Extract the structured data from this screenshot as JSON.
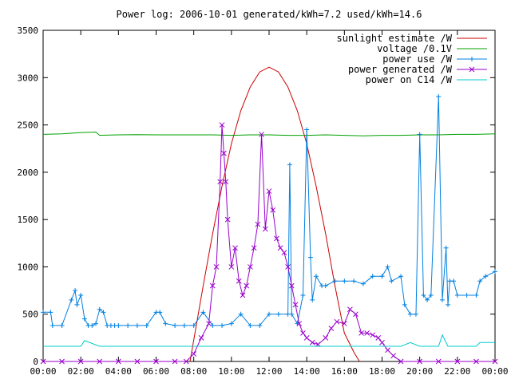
{
  "chart_data": {
    "type": "line",
    "title": "Power log: 2006-10-01 generated/kWh=7.2 used/kWh=14.6",
    "xlabel": "",
    "ylabel": "",
    "xlim": [
      0,
      24
    ],
    "ylim": [
      0,
      3500
    ],
    "x_ticks": [
      "00:00",
      "02:00",
      "04:00",
      "06:00",
      "08:00",
      "10:00",
      "12:00",
      "14:00",
      "16:00",
      "18:00",
      "20:00",
      "22:00",
      "00:00"
    ],
    "y_ticks": [
      "0",
      "500",
      "1000",
      "1500",
      "2000",
      "2500",
      "3000",
      "3500"
    ],
    "grid": false,
    "legend_position": "top-right",
    "series": [
      {
        "name": "sunlight estimate /W",
        "color": "#cc0000",
        "marker": "none",
        "x": [
          7.8,
          8.5,
          9.0,
          9.5,
          10.0,
          10.5,
          11.0,
          11.5,
          12.0,
          12.5,
          13.0,
          13.5,
          14.0,
          14.5,
          15.0,
          15.5,
          16.0,
          16.5,
          16.8
        ],
        "y": [
          0,
          800,
          1350,
          1850,
          2300,
          2650,
          2900,
          3060,
          3110,
          3060,
          2900,
          2650,
          2300,
          1850,
          1350,
          800,
          300,
          100,
          0
        ]
      },
      {
        "name": "voltage /0.1V",
        "color": "#00a000",
        "marker": "none",
        "x": [
          0,
          1,
          2,
          2.8,
          3,
          4,
          5,
          6,
          7,
          8,
          9,
          10,
          11,
          12,
          13,
          14,
          15,
          16,
          17,
          18,
          19,
          20,
          21,
          22,
          23,
          24
        ],
        "y": [
          2400,
          2405,
          2420,
          2425,
          2390,
          2395,
          2398,
          2395,
          2395,
          2395,
          2395,
          2390,
          2395,
          2395,
          2390,
          2390,
          2395,
          2390,
          2385,
          2390,
          2390,
          2395,
          2395,
          2400,
          2400,
          2405
        ]
      },
      {
        "name": "power use /W",
        "color": "#0080e0",
        "marker": "plus",
        "x": [
          0,
          0.4,
          0.5,
          1.0,
          1.5,
          1.7,
          1.8,
          2.0,
          2.2,
          2.4,
          2.6,
          2.8,
          3.0,
          3.2,
          3.4,
          3.6,
          3.8,
          4.0,
          4.5,
          5.0,
          5.5,
          6.0,
          6.2,
          6.5,
          7.0,
          7.5,
          8.0,
          8.5,
          9.0,
          9.5,
          10.0,
          10.5,
          11.0,
          11.5,
          12.0,
          12.5,
          13.0,
          13.1,
          13.2,
          13.5,
          13.8,
          14.0,
          14.2,
          14.3,
          14.5,
          14.8,
          15.0,
          15.5,
          16.0,
          16.5,
          17.0,
          17.5,
          18.0,
          18.3,
          18.5,
          19.0,
          19.2,
          19.5,
          19.8,
          20.0,
          20.2,
          20.4,
          20.6,
          21.0,
          21.2,
          21.4,
          21.5,
          21.6,
          21.8,
          22.0,
          22.5,
          23.0,
          23.2,
          23.5,
          24.0
        ],
        "y": [
          520,
          520,
          380,
          380,
          650,
          750,
          600,
          700,
          450,
          380,
          380,
          400,
          550,
          520,
          380,
          380,
          380,
          380,
          380,
          380,
          380,
          520,
          520,
          400,
          380,
          380,
          380,
          520,
          380,
          380,
          400,
          500,
          380,
          380,
          500,
          500,
          500,
          2080,
          500,
          400,
          700,
          2450,
          1100,
          650,
          900,
          800,
          800,
          850,
          850,
          850,
          820,
          900,
          900,
          1000,
          850,
          900,
          600,
          500,
          500,
          2400,
          700,
          650,
          700,
          2800,
          650,
          1200,
          600,
          850,
          850,
          700,
          700,
          700,
          850,
          900,
          950
        ]
      },
      {
        "name": "power generated /W",
        "color": "#9900cc",
        "marker": "x",
        "x": [
          0,
          1,
          2,
          3,
          4,
          5,
          6,
          7,
          7.6,
          8.0,
          8.4,
          8.8,
          9.0,
          9.2,
          9.4,
          9.5,
          9.6,
          9.7,
          9.8,
          10.0,
          10.2,
          10.4,
          10.6,
          10.8,
          11.0,
          11.2,
          11.4,
          11.6,
          11.8,
          12.0,
          12.2,
          12.4,
          12.6,
          12.8,
          13.0,
          13.2,
          13.4,
          13.6,
          13.8,
          14.0,
          14.3,
          14.6,
          15.0,
          15.3,
          15.6,
          16.0,
          16.3,
          16.6,
          16.9,
          17.2,
          17.5,
          17.8,
          18.0,
          18.3,
          18.6,
          19.0,
          20.0,
          21.0,
          22.0,
          23.0,
          24.0
        ],
        "y": [
          0,
          0,
          0,
          0,
          0,
          0,
          0,
          0,
          0,
          80,
          250,
          400,
          800,
          1000,
          1900,
          2500,
          2200,
          1900,
          1500,
          1000,
          1200,
          850,
          700,
          800,
          1000,
          1200,
          1450,
          2400,
          1400,
          1800,
          1600,
          1300,
          1200,
          1150,
          1000,
          800,
          600,
          400,
          300,
          250,
          200,
          180,
          250,
          350,
          420,
          400,
          550,
          500,
          300,
          300,
          280,
          250,
          200,
          120,
          60,
          0,
          0,
          0,
          0,
          0,
          0
        ]
      },
      {
        "name": "power on C14 /W",
        "color": "#00cccc",
        "marker": "none",
        "x": [
          0,
          1,
          2,
          2.2,
          3,
          4,
          6,
          8,
          10,
          12,
          14,
          16,
          18,
          19,
          19.5,
          20,
          21,
          21.2,
          21.5,
          22,
          23,
          23.2,
          24
        ],
        "y": [
          160,
          160,
          160,
          220,
          160,
          160,
          160,
          160,
          160,
          160,
          160,
          160,
          160,
          160,
          200,
          160,
          160,
          280,
          160,
          160,
          160,
          200,
          200
        ]
      }
    ]
  }
}
